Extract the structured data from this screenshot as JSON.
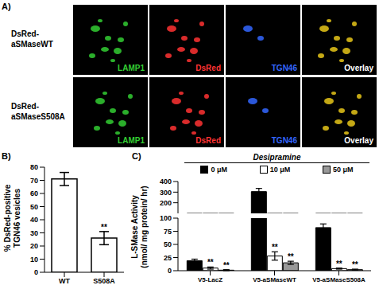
{
  "image_panel": {
    "panel_label": "A)",
    "rows": [
      "DsRed-aSMaseWT",
      "DsRed-aSMaseS508A"
    ],
    "channels": [
      {
        "name": "LAMP1",
        "color": "#33cc33"
      },
      {
        "name": "DsRed",
        "color": "#ff3333"
      },
      {
        "name": "TGN46",
        "color": "#3366ff"
      },
      {
        "name": "Overlay",
        "color": "#ffffff"
      }
    ]
  },
  "chart_data": [
    {
      "type": "bar",
      "panel_label": "B)",
      "ylabel": "% DsRed-positive TGN46 vesicles",
      "categories": [
        "WT",
        "S508A"
      ],
      "values": [
        71,
        26
      ],
      "errors": [
        5,
        5
      ],
      "annotations": [
        null,
        "**"
      ],
      "color": "#ffffff",
      "ylim": [
        0,
        80
      ],
      "yticks": [
        0,
        10,
        20,
        30,
        40,
        50,
        60,
        70,
        80
      ]
    },
    {
      "type": "bar",
      "panel_label": "C)",
      "title": "Desipramine",
      "ylabel": "L-SMase Activity (nmol/ mg protein/ hr)",
      "categories": [
        "V5-LacZ",
        "V5-aSMaseWT",
        "V5-aSMaseS508A"
      ],
      "series": [
        {
          "name": "0 μM",
          "color": "#000000",
          "values": [
            19,
            305,
            82
          ],
          "errors": [
            3,
            30,
            7
          ]
        },
        {
          "name": "10 μM",
          "color": "#ffffff",
          "values": [
            5,
            28,
            4
          ],
          "errors": [
            2,
            8,
            1
          ],
          "annotations": [
            "**",
            "**",
            "**"
          ]
        },
        {
          "name": "50 μM",
          "color": "#999999",
          "values": [
            1,
            15,
            2
          ],
          "errors": [
            1,
            3,
            1
          ],
          "annotations": [
            "**",
            "**",
            "**"
          ]
        }
      ],
      "ylim": [
        0,
        400
      ],
      "yticks": [
        0,
        25,
        50,
        75,
        100,
        200,
        300,
        400
      ],
      "legend": "top"
    }
  ]
}
